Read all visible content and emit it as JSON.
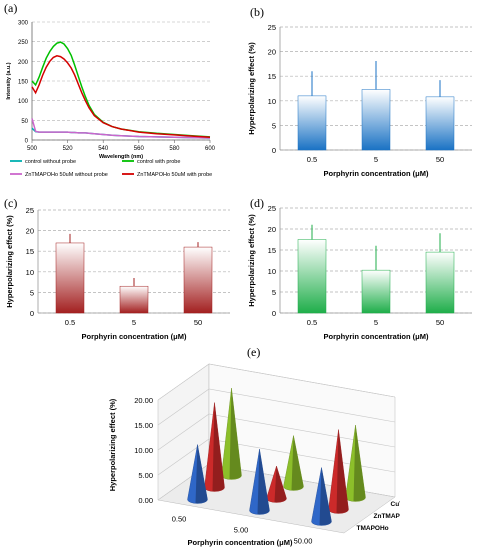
{
  "panel_labels": {
    "a": "(a)",
    "b": "(b)",
    "c": "(c)",
    "d": "(d)",
    "e": "(e)"
  },
  "chart_data": [
    {
      "id": "a",
      "type": "line",
      "xlabel": "Wavelength (nm)",
      "ylabel": "Intensity (a.u.)",
      "xlim": [
        500,
        600
      ],
      "ylim": [
        0,
        300
      ],
      "xticks": [
        "500",
        "520",
        "540",
        "560",
        "580",
        "600"
      ],
      "yticks": [
        "0",
        "50",
        "100",
        "150",
        "200",
        "250",
        "300"
      ],
      "grid": "horizontal dashed",
      "legend_position": "bottom",
      "x": [
        500,
        502,
        504,
        506,
        508,
        510,
        512,
        514,
        516,
        518,
        520,
        522,
        524,
        526,
        528,
        530,
        532,
        535,
        540,
        545,
        550,
        560,
        570,
        580,
        590,
        600
      ],
      "series": [
        {
          "name": "control without probe",
          "color": "#00b0b0",
          "values": [
            30,
            21,
            20,
            20,
            20,
            20,
            20,
            20,
            20,
            20,
            20,
            19,
            19,
            18,
            18,
            18,
            17,
            16,
            14,
            12,
            11,
            9,
            8,
            7,
            6,
            5
          ]
        },
        {
          "name": "control with probe",
          "color": "#00c000",
          "values": [
            150,
            140,
            160,
            185,
            208,
            225,
            238,
            246,
            249,
            244,
            232,
            215,
            190,
            162,
            135,
            110,
            88,
            65,
            45,
            34,
            28,
            21,
            17,
            14,
            11,
            8
          ]
        },
        {
          "name": "ZnTMAPOHo 50uM without probe",
          "color": "#cc66cc",
          "values": [
            55,
            22,
            20,
            20,
            20,
            20,
            20,
            20,
            20,
            20,
            20,
            19,
            19,
            18,
            18,
            18,
            17,
            16,
            14,
            12,
            11,
            9,
            8,
            7,
            6,
            5
          ]
        },
        {
          "name": "ZnTMAPOHo 50uM with probe",
          "color": "#d40000",
          "values": [
            135,
            120,
            140,
            165,
            185,
            200,
            210,
            214,
            212,
            206,
            196,
            183,
            165,
            142,
            120,
            100,
            82,
            62,
            44,
            34,
            28,
            20,
            16,
            13,
            10,
            7
          ]
        }
      ]
    },
    {
      "id": "b",
      "type": "bar",
      "xlabel": "Porphyrin concentration (μM)",
      "ylabel": "Hyperpolarizing effect (%)",
      "ylim": [
        0,
        25
      ],
      "yticks": [
        "0",
        "5",
        "10",
        "15",
        "20",
        "25"
      ],
      "grid": "horizontal dashed",
      "categories": [
        "0.5",
        "5",
        "50"
      ],
      "values": [
        11,
        12.3,
        10.8
      ],
      "errors": [
        5,
        5.8,
        3.4
      ],
      "color": "#1a72c4"
    },
    {
      "id": "c",
      "type": "bar",
      "xlabel": "Porphyrin concentration (μM)",
      "ylabel": "Hyperpolarizing effect (%)",
      "ylim": [
        0,
        25
      ],
      "yticks": [
        "0",
        "5",
        "10",
        "15",
        "20",
        "25"
      ],
      "grid": "horizontal dashed",
      "categories": [
        "0.5",
        "5",
        "50"
      ],
      "values": [
        17,
        6.5,
        16
      ],
      "errors": [
        2.2,
        2,
        1.2
      ],
      "color": "#a32020"
    },
    {
      "id": "d",
      "type": "bar",
      "xlabel": "Porphyrin concentration (μM)",
      "ylabel": "Hyperpolarizing effect (%)",
      "ylim": [
        0,
        25
      ],
      "yticks": [
        "0",
        "5",
        "10",
        "15",
        "20",
        "25"
      ],
      "grid": "horizontal dashed",
      "categories": [
        "0.5",
        "5",
        "50"
      ],
      "values": [
        17.5,
        10.2,
        14.5
      ],
      "errors": [
        3.5,
        5.8,
        4.5
      ],
      "color": "#1fae4a"
    },
    {
      "id": "e",
      "type": "bar",
      "subtype": "3d-cone",
      "xlabel": "Porphyrin concentration (μM)",
      "ylabel": "Hyperpolarizing effect (%)",
      "ylim": [
        0,
        20
      ],
      "yticks": [
        "0.00",
        "5.00",
        "10.00",
        "15.00",
        "20.00"
      ],
      "categories": [
        "0.50",
        "5.00",
        "50.00"
      ],
      "series": [
        {
          "name": "TMAPOHo",
          "color": "#2f67c8",
          "values": [
            11,
            12.3,
            10.8
          ]
        },
        {
          "name": "ZnTMAPOHo",
          "color": "#cc2a2a",
          "values": [
            17,
            6.5,
            16
          ]
        },
        {
          "name": "CuTMAPOHo",
          "color": "#8cbf2a",
          "values": [
            17.5,
            10.2,
            14.5
          ]
        }
      ]
    }
  ]
}
